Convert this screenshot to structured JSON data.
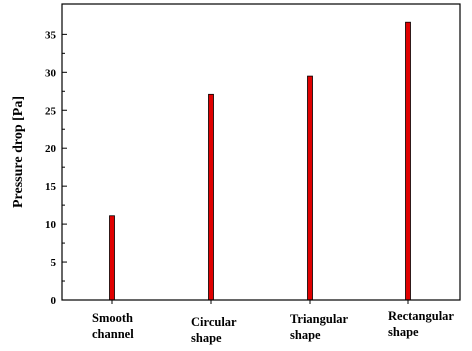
{
  "chart_data": {
    "type": "bar",
    "title": "",
    "xlabel": "",
    "ylabel": "Pressure drop [Pa]",
    "categories": [
      [
        "Smooth",
        "channel"
      ],
      [
        "Circular",
        "shape"
      ],
      [
        "Triangular",
        "shape"
      ],
      [
        "Rectangular",
        "shape"
      ]
    ],
    "values": [
      11.1,
      27.1,
      29.5,
      36.6
    ],
    "ylim": [
      0,
      39
    ],
    "yticks": [
      0,
      5,
      10,
      15,
      20,
      25,
      30,
      35
    ],
    "grid": false,
    "legend": "none",
    "bar_color": "#e00000",
    "bar_edge_color": "#000000"
  }
}
